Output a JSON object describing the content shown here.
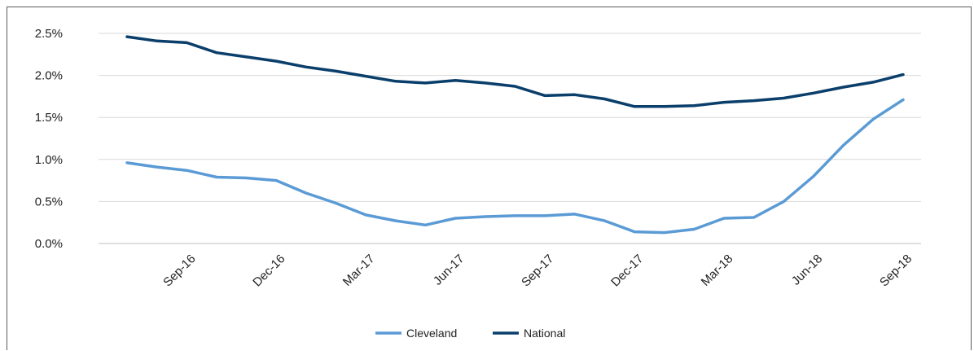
{
  "chart_data": {
    "type": "line",
    "x": [
      "Jul-16",
      "Aug-16",
      "Sep-16",
      "Oct-16",
      "Nov-16",
      "Dec-16",
      "Jan-17",
      "Feb-17",
      "Mar-17",
      "Apr-17",
      "May-17",
      "Jun-17",
      "Jul-17",
      "Aug-17",
      "Sep-17",
      "Oct-17",
      "Nov-17",
      "Dec-17",
      "Jan-18",
      "Feb-18",
      "Mar-18",
      "Apr-18",
      "May-18",
      "Jun-18",
      "Jul-18",
      "Aug-18",
      "Sep-18"
    ],
    "x_tick_labels": [
      "Sep-16",
      "Dec-16",
      "Mar-17",
      "Jun-17",
      "Sep-17",
      "Dec-17",
      "Mar-18",
      "Jun-18",
      "Sep-18"
    ],
    "y_tick_labels": [
      "0.0%",
      "0.5%",
      "1.0%",
      "1.5%",
      "2.0%",
      "2.5%"
    ],
    "ylim": [
      0,
      2.5
    ],
    "grid": true,
    "legend_position": "bottom",
    "series": [
      {
        "name": "Cleveland",
        "color": "#5b9bd5",
        "values": [
          0.96,
          0.91,
          0.87,
          0.79,
          0.78,
          0.75,
          0.6,
          0.48,
          0.34,
          0.27,
          0.22,
          0.3,
          0.32,
          0.33,
          0.33,
          0.35,
          0.27,
          0.14,
          0.13,
          0.17,
          0.3,
          0.31,
          0.5,
          0.8,
          1.17,
          1.48,
          1.71
        ]
      },
      {
        "name": "National",
        "color": "#0a3e6b",
        "values": [
          2.46,
          2.41,
          2.39,
          2.27,
          2.22,
          2.17,
          2.1,
          2.05,
          1.99,
          1.93,
          1.91,
          1.94,
          1.91,
          1.87,
          1.76,
          1.77,
          1.72,
          1.63,
          1.63,
          1.64,
          1.68,
          1.7,
          1.73,
          1.79,
          1.86,
          1.92,
          2.01
        ]
      }
    ]
  }
}
